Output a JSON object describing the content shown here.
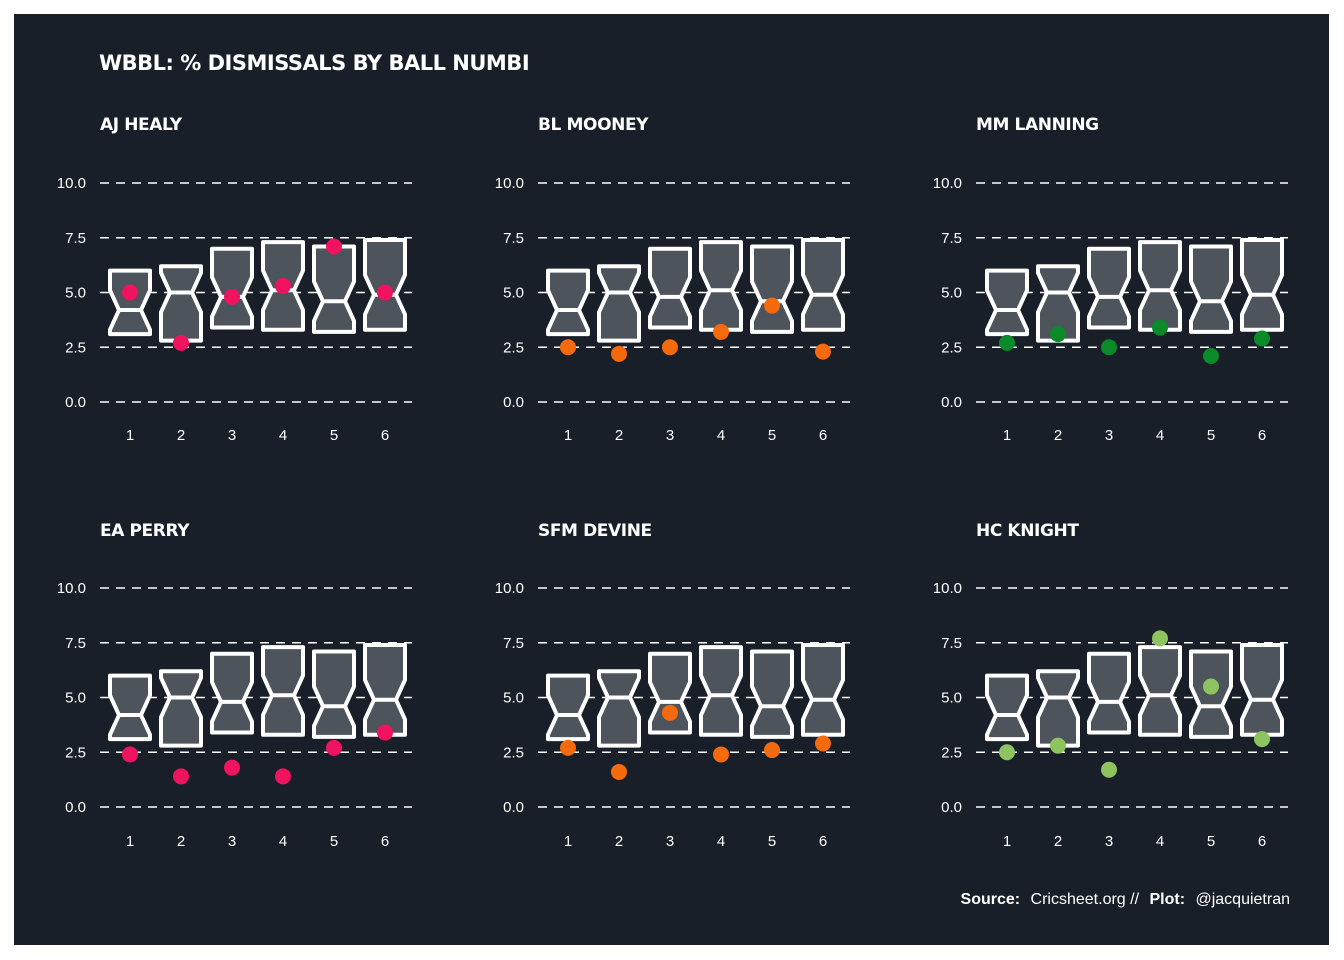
{
  "title": "WBBL: % DISMISSALS BY BALL NUMBI",
  "caption": {
    "source_label": "Source:",
    "source_text": "Cricsheet.org //",
    "plot_label": "Plot:",
    "plot_text": "@jacquietran"
  },
  "colors": {
    "background": "#191f28",
    "box_fill": "#4d545c",
    "box_outline": "#ffffff"
  },
  "chart_data": {
    "type": "boxplot",
    "x_ticks": [
      "1",
      "2",
      "3",
      "4",
      "5",
      "6"
    ],
    "y_ticks": [
      "0.0",
      "2.5",
      "5.0",
      "7.5",
      "10.0"
    ],
    "ylim": [
      0,
      10
    ],
    "grid": "horizontal dashed",
    "boxes": [
      {
        "ball": 1,
        "q1": 3.1,
        "median": 4.2,
        "q3": 6.0
      },
      {
        "ball": 2,
        "q1": 2.8,
        "median": 5.0,
        "q3": 6.2
      },
      {
        "ball": 3,
        "q1": 3.4,
        "median": 4.8,
        "q3": 7.0
      },
      {
        "ball": 4,
        "q1": 3.3,
        "median": 5.1,
        "q3": 7.3
      },
      {
        "ball": 5,
        "q1": 3.2,
        "median": 4.6,
        "q3": 7.1
      },
      {
        "ball": 6,
        "q1": 3.3,
        "median": 4.9,
        "q3": 7.4
      }
    ],
    "facets": [
      {
        "name": "AJ HEALY",
        "color": "#f0135f",
        "values": [
          5.0,
          2.7,
          4.8,
          5.3,
          7.1,
          5.0
        ]
      },
      {
        "name": "BL MOONEY",
        "color": "#f56a0c",
        "values": [
          2.5,
          2.2,
          2.5,
          3.2,
          4.4,
          2.3
        ]
      },
      {
        "name": "MM LANNING",
        "color": "#0b8a2a",
        "values": [
          2.7,
          3.1,
          2.5,
          3.4,
          2.1,
          2.9
        ]
      },
      {
        "name": "EA PERRY",
        "color": "#f0135f",
        "values": [
          2.4,
          1.4,
          1.8,
          1.4,
          2.7,
          3.4
        ]
      },
      {
        "name": "SFM DEVINE",
        "color": "#f56a0c",
        "values": [
          2.7,
          1.6,
          4.3,
          2.4,
          2.6,
          2.9
        ]
      },
      {
        "name": "HC KNIGHT",
        "color": "#8dc45f",
        "values": [
          2.5,
          2.8,
          1.7,
          7.7,
          5.5,
          3.1
        ]
      }
    ]
  }
}
